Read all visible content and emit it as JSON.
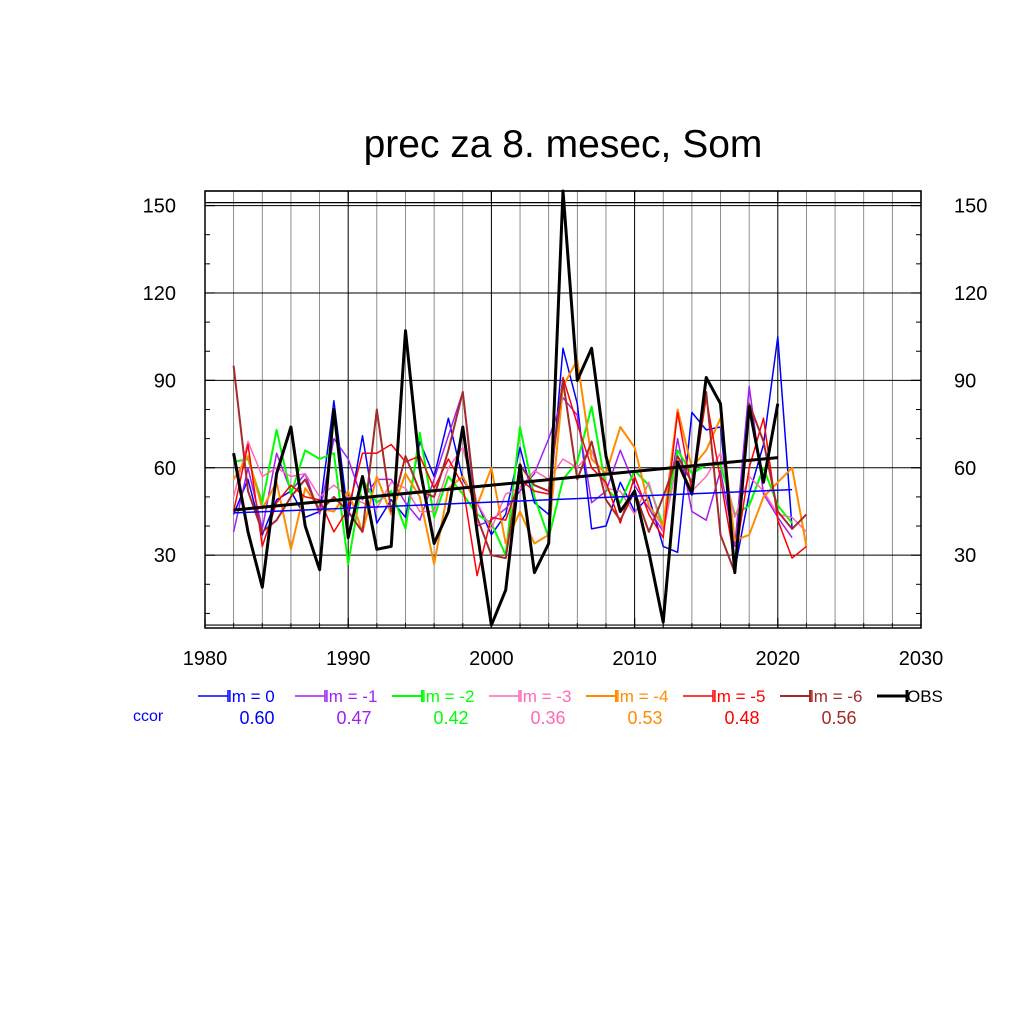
{
  "chart_data": {
    "type": "line",
    "title": "prec za 8. mesec, Som",
    "xlabel": "",
    "ylabel": "",
    "xlim": [
      1980,
      2030
    ],
    "ylim": [
      5,
      155
    ],
    "x_ticks": [
      1980,
      1990,
      2000,
      2010,
      2020,
      2030
    ],
    "y_ticks": [
      30,
      60,
      90,
      120,
      150
    ],
    "ref_lines": [
      6,
      151,
      155
    ],
    "grid": true,
    "legend_position": "bottom",
    "ccor_label": "ccor",
    "series": [
      {
        "name": "lm = 0",
        "color": "#0000ff",
        "width": 1.5,
        "ccor": "0.60",
        "x": [
          1982,
          1983,
          1984,
          1985,
          1986,
          1987,
          1988,
          1989,
          1990,
          1991,
          1992,
          1993,
          1994,
          1995,
          1996,
          1997,
          1998,
          1999,
          2000,
          2001,
          2002,
          2003,
          2004,
          2005,
          2006,
          2007,
          2008,
          2009,
          2010,
          2011,
          2012,
          2013,
          2014,
          2015,
          2016,
          2017,
          2018,
          2019,
          2020,
          2021
        ],
        "y": [
          44,
          56,
          37,
          49,
          52,
          43,
          45,
          83,
          43,
          71,
          41,
          49,
          43,
          69,
          57,
          77,
          56,
          48,
          37,
          44,
          67,
          48,
          44,
          101,
          82,
          39,
          40,
          55,
          45,
          50,
          33,
          31,
          79,
          73,
          74,
          25,
          51,
          68,
          105,
          39
        ]
      },
      {
        "name": "lm = -1",
        "color": "#a020f0",
        "width": 1.5,
        "ccor": "0.47",
        "x": [
          1982,
          1983,
          1984,
          1985,
          1986,
          1987,
          1988,
          1989,
          1990,
          1991,
          1992,
          1993,
          1994,
          1995,
          1996,
          1997,
          1998,
          1999,
          2000,
          2001,
          2002,
          2003,
          2004,
          2005,
          2006,
          2007,
          2008,
          2009,
          2010,
          2011,
          2012,
          2013,
          2014,
          2015,
          2016,
          2017,
          2018,
          2019,
          2020,
          2021
        ],
        "y": [
          38,
          60,
          39,
          65,
          52,
          58,
          44,
          70,
          63,
          49,
          56,
          56,
          48,
          42,
          56,
          71,
          86,
          40,
          42,
          46,
          52,
          58,
          70,
          84,
          78,
          48,
          52,
          66,
          54,
          46,
          38,
          70,
          45,
          42,
          59,
          33,
          88,
          51,
          43,
          36
        ]
      },
      {
        "name": "lm = -2",
        "color": "#00ff00",
        "width": 2,
        "ccor": "0.42",
        "x": [
          1982,
          1983,
          1984,
          1985,
          1986,
          1987,
          1988,
          1989,
          1990,
          1991,
          1992,
          1993,
          1994,
          1995,
          1996,
          1997,
          1998,
          1999,
          2000,
          2001,
          2002,
          2003,
          2004,
          2005,
          2006,
          2007,
          2008,
          2009,
          2010,
          2011,
          2012,
          2013,
          2014,
          2015,
          2016,
          2017,
          2018,
          2019,
          2020,
          2021
        ],
        "y": [
          62,
          63,
          48,
          73,
          51,
          66,
          63,
          65,
          27,
          56,
          48,
          52,
          39,
          72,
          43,
          57,
          51,
          44,
          41,
          30,
          74,
          50,
          36,
          56,
          62,
          81,
          53,
          48,
          59,
          54,
          40,
          66,
          58,
          61,
          61,
          44,
          47,
          60,
          47,
          41
        ]
      },
      {
        "name": "lm = -3",
        "color": "#ff69b4",
        "width": 1.5,
        "ccor": "0.36",
        "x": [
          1982,
          1983,
          1984,
          1985,
          1986,
          1987,
          1988,
          1989,
          1990,
          1991,
          1992,
          1993,
          1994,
          1995,
          1996,
          1997,
          1998,
          1999,
          2000,
          2001,
          2002,
          2003,
          2004,
          2005,
          2006,
          2007,
          2008,
          2009,
          2010,
          2011,
          2012,
          2013,
          2014,
          2015,
          2016,
          2017,
          2018,
          2019,
          2020,
          2021,
          2022
        ],
        "y": [
          50,
          69,
          57,
          60,
          57,
          58,
          50,
          54,
          50,
          48,
          46,
          55,
          53,
          45,
          45,
          60,
          67,
          48,
          39,
          51,
          53,
          59,
          56,
          63,
          60,
          66,
          53,
          52,
          44,
          55,
          38,
          62,
          52,
          57,
          65,
          43,
          57,
          52,
          44,
          43,
          38
        ]
      },
      {
        "name": "lm = -4",
        "color": "#ff8c00",
        "width": 2,
        "ccor": "0.53",
        "x": [
          1982,
          1983,
          1984,
          1985,
          1986,
          1987,
          1988,
          1989,
          1990,
          1991,
          1992,
          1993,
          1994,
          1995,
          1996,
          1997,
          1998,
          1999,
          2000,
          2001,
          2002,
          2003,
          2004,
          2005,
          2006,
          2007,
          2008,
          2009,
          2010,
          2011,
          2012,
          2013,
          2014,
          2015,
          2016,
          2017,
          2018,
          2019,
          2020,
          2021,
          2022
        ],
        "y": [
          56,
          64,
          46,
          55,
          32,
          53,
          46,
          45,
          52,
          38,
          57,
          44,
          58,
          50,
          27,
          53,
          57,
          47,
          60,
          34,
          45,
          34,
          37,
          88,
          97,
          63,
          58,
          74,
          67,
          47,
          40,
          80,
          60,
          66,
          77,
          35,
          37,
          50,
          55,
          60,
          33
        ]
      },
      {
        "name": "lm = -5",
        "color": "#ff0000",
        "width": 1.5,
        "ccor": "0.48",
        "x": [
          1982,
          1983,
          1984,
          1985,
          1986,
          1987,
          1988,
          1989,
          1990,
          1991,
          1992,
          1993,
          1994,
          1995,
          1996,
          1997,
          1998,
          1999,
          2000,
          2001,
          2002,
          2003,
          2004,
          2005,
          2006,
          2007,
          2008,
          2009,
          2010,
          2011,
          2012,
          2013,
          2014,
          2015,
          2016,
          2017,
          2018,
          2019,
          2020,
          2021,
          2022
        ],
        "y": [
          45,
          68,
          33,
          48,
          54,
          50,
          49,
          38,
          46,
          65,
          65,
          68,
          62,
          64,
          53,
          63,
          54,
          23,
          43,
          42,
          56,
          52,
          51,
          91,
          75,
          60,
          55,
          41,
          57,
          44,
          36,
          79,
          52,
          84,
          56,
          28,
          60,
          77,
          42,
          29,
          33
        ]
      },
      {
        "name": "lm = -6",
        "color": "#a52a2a",
        "width": 2,
        "ccor": "0.56",
        "x": [
          1982,
          1983,
          1984,
          1985,
          1986,
          1987,
          1988,
          1989,
          1990,
          1991,
          1992,
          1993,
          1994,
          1995,
          1996,
          1997,
          1998,
          1999,
          2000,
          2001,
          2002,
          2003,
          2004,
          2005,
          2006,
          2007,
          2008,
          2009,
          2010,
          2011,
          2012,
          2013,
          2014,
          2015,
          2016,
          2017,
          2018,
          2019,
          2020,
          2021,
          2022
        ],
        "y": [
          95,
          52,
          38,
          42,
          50,
          56,
          45,
          50,
          45,
          38,
          80,
          45,
          64,
          52,
          50,
          66,
          86,
          43,
          30,
          29,
          61,
          54,
          52,
          90,
          56,
          69,
          49,
          42,
          52,
          38,
          50,
          64,
          55,
          86,
          37,
          24,
          82,
          69,
          45,
          39,
          44
        ]
      },
      {
        "name": "OBS",
        "color": "#000000",
        "width": 3,
        "ccor": "",
        "x": [
          1982,
          1983,
          1984,
          1985,
          1986,
          1987,
          1988,
          1989,
          1990,
          1991,
          1992,
          1993,
          1994,
          1995,
          1996,
          1997,
          1998,
          1999,
          2000,
          2001,
          2002,
          2003,
          2004,
          2005,
          2006,
          2007,
          2008,
          2009,
          2010,
          2011,
          2012,
          2013,
          2014,
          2015,
          2016,
          2017,
          2018,
          2019,
          2020
        ],
        "y": [
          65,
          38,
          19,
          58,
          74,
          40,
          25,
          80,
          36,
          57,
          32,
          33,
          107,
          60,
          34,
          45,
          74,
          38,
          6,
          18,
          61,
          24,
          34,
          155,
          90,
          101,
          64,
          45,
          52,
          31,
          7,
          62,
          51,
          91,
          82,
          24,
          81,
          55,
          82
        ]
      }
    ],
    "trend_lines": [
      {
        "series": "lm = 0",
        "color": "#0000ff",
        "width": 1.5,
        "x": [
          1982,
          2021
        ],
        "y": [
          44.5,
          52.5
        ]
      },
      {
        "series": "OBS",
        "color": "#000000",
        "width": 3,
        "x": [
          1982,
          2020
        ],
        "y": [
          45.5,
          63.5
        ]
      }
    ]
  }
}
